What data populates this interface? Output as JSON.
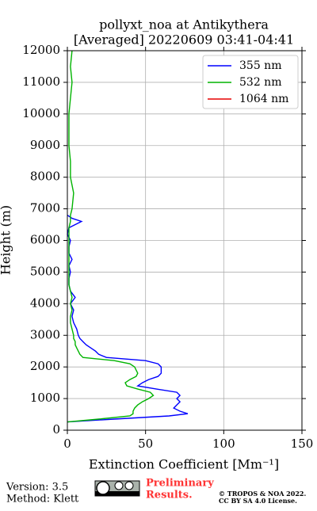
{
  "chart_data": {
    "type": "line",
    "title": [
      "pollyxt_noa at Antikythera",
      "[Averaged] 20220609 03:41-04:41"
    ],
    "xlabel": "Extinction Coefficient [Mm⁻¹]",
    "ylabel": "Height (m)",
    "y": [
      260,
      350,
      450,
      520,
      600,
      700,
      800,
      900,
      1000,
      1100,
      1200,
      1300,
      1400,
      1500,
      1600,
      1700,
      1800,
      1900,
      2000,
      2100,
      2200,
      2300,
      2400,
      2500,
      2600,
      2700,
      2800,
      2900,
      3000,
      3200,
      3400,
      3600,
      3800,
      4000,
      4200,
      4400,
      4600,
      4800,
      5000,
      5200,
      5400,
      5600,
      5800,
      6000,
      6200,
      6400,
      6600,
      6700,
      6800,
      7000,
      7500,
      8000,
      8500,
      9000,
      9500,
      10000,
      10500,
      11000,
      11500,
      12000
    ],
    "series": [
      {
        "name": "355 nm",
        "color": "#0000ff",
        "values": [
          0,
          30,
          65,
          77,
          72,
          68,
          70,
          72,
          70,
          72,
          70,
          57,
          45,
          48,
          52,
          58,
          60,
          60,
          60,
          58,
          50,
          25,
          20,
          18,
          15,
          12,
          10,
          8,
          7,
          6,
          4,
          3,
          4,
          2,
          5,
          2,
          1,
          1,
          2,
          1,
          3,
          1,
          1,
          2,
          0,
          1,
          9,
          3,
          0,
          null,
          null,
          null,
          null,
          null,
          null,
          null,
          null,
          null,
          null,
          null
        ]
      },
      {
        "name": "532 nm",
        "color": "#00b400",
        "values": [
          0,
          20,
          40,
          42,
          42,
          43,
          45,
          48,
          52,
          55,
          53,
          45,
          38,
          37,
          40,
          44,
          45,
          44,
          43,
          40,
          30,
          10,
          8,
          7,
          6,
          5,
          5,
          4,
          4,
          3,
          2,
          2,
          3,
          2,
          3,
          2,
          1,
          1,
          1,
          1,
          1,
          1,
          1,
          1,
          1,
          1,
          2,
          2,
          2,
          3,
          4,
          2,
          2,
          1,
          1,
          1,
          2,
          3,
          2,
          3
        ]
      },
      {
        "name": "1064 nm",
        "color": "#e60000",
        "values": [
          null,
          null,
          null,
          null,
          null,
          null,
          null,
          null,
          null,
          null,
          null,
          null,
          null,
          null,
          null,
          null,
          null,
          null,
          null,
          null,
          null,
          null,
          null,
          null,
          null,
          null,
          null,
          null,
          null,
          null,
          null,
          null,
          null,
          null,
          null,
          null,
          null,
          null,
          null,
          null,
          null,
          null,
          null,
          null,
          null,
          null,
          null,
          null,
          null,
          null,
          null,
          null,
          null,
          null,
          null,
          null,
          null,
          null,
          null,
          null
        ]
      }
    ],
    "xlim": [
      0,
      150
    ],
    "xticks": [
      0,
      50,
      100,
      150
    ],
    "ylim": [
      0,
      12000
    ],
    "yticks": [
      0,
      1000,
      2000,
      3000,
      4000,
      5000,
      6000,
      7000,
      8000,
      9000,
      10000,
      11000,
      12000
    ],
    "grid": true,
    "legend": "upper right"
  },
  "footer": {
    "version": "Version: 3.5",
    "method": "Method: Klett",
    "preliminary": [
      "Preliminary",
      "Results."
    ],
    "copyright": [
      "© TROPOS & NOA 2022.",
      "CC BY SA 4.0 License."
    ]
  }
}
